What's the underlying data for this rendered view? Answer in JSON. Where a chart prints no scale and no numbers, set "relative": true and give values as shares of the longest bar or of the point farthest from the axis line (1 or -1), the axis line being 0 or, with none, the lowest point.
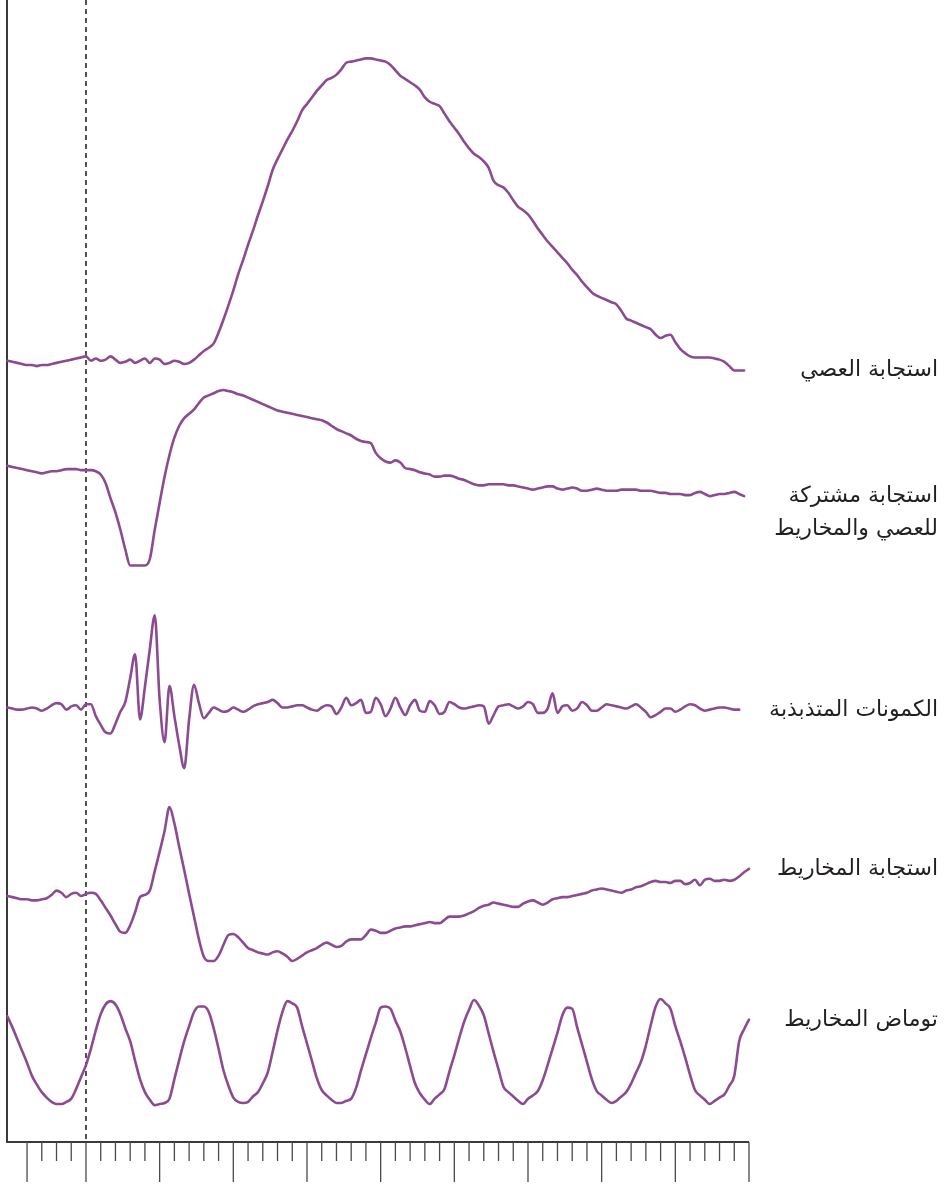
{
  "chart_data": {
    "type": "line",
    "relative": true,
    "categories": [
      null,
      null,
      null,
      null,
      null,
      null,
      null,
      null,
      null,
      null,
      null,
      null,
      null,
      null,
      null,
      null,
      null,
      null,
      null,
      null,
      null,
      null,
      null,
      null,
      null,
      null,
      null,
      null,
      null,
      null,
      null,
      null,
      null,
      null,
      null,
      null,
      null,
      null,
      null,
      null,
      null,
      null,
      null,
      null,
      null,
      null,
      null,
      null,
      null,
      null,
      null,
      null,
      null,
      null,
      null,
      null,
      null,
      null,
      null,
      null,
      null,
      null,
      null,
      null,
      null,
      null,
      null,
      null,
      null,
      null,
      null,
      null,
      null,
      null,
      null,
      null,
      null,
      null,
      null,
      null,
      null,
      null,
      null,
      null,
      null,
      null,
      null,
      null,
      null,
      null,
      null,
      null,
      null,
      null,
      null,
      null,
      null,
      null,
      null,
      null,
      null,
      null,
      null,
      null,
      null,
      null,
      null,
      null,
      null,
      null,
      null,
      null,
      null,
      null,
      null,
      null,
      null,
      null,
      null,
      null,
      null,
      null,
      null,
      null,
      null,
      null,
      null,
      null,
      null,
      null,
      null,
      null,
      null,
      null,
      null,
      null,
      null,
      null,
      null,
      null,
      null,
      null,
      null,
      null,
      null,
      null,
      null,
      null,
      null,
      null,
      null,
      null
    ],
    "series": [
      {
        "name": "استجابة العصي",
        "color": "#8c4a92",
        "values": [
          0.721,
          0.72,
          0.719,
          0.718,
          0.717,
          0.717,
          0.716,
          0.717,
          0.717,
          0.718,
          0.719,
          0.72,
          0.721,
          0.722,
          0.723,
          0.724,
          0.725,
          0.721,
          0.723,
          0.721,
          0.722,
          0.725,
          0.722,
          0.719,
          0.72,
          0.722,
          0.719,
          0.721,
          0.723,
          0.719,
          0.723,
          0.722,
          0.718,
          0.719,
          0.721,
          0.72,
          0.718,
          0.719,
          0.722,
          0.726,
          0.73,
          0.733,
          0.737,
          0.747,
          0.759,
          0.772,
          0.786,
          0.801,
          0.814,
          0.828,
          0.841,
          0.855,
          0.868,
          0.882,
          0.897,
          0.907,
          0.916,
          0.925,
          0.933,
          0.942,
          0.952,
          0.958,
          0.964,
          0.97,
          0.975,
          0.98,
          0.982,
          0.985,
          0.99,
          0.996,
          0.997,
          0.998,
          0.999,
          1.0,
          1.0,
          0.999,
          0.998,
          0.997,
          0.994,
          0.989,
          0.984,
          0.981,
          0.978,
          0.975,
          0.971,
          0.964,
          0.96,
          0.958,
          0.956,
          0.949,
          0.942,
          0.936,
          0.93,
          0.923,
          0.917,
          0.912,
          0.909,
          0.905,
          0.899,
          0.887,
          0.883,
          0.881,
          0.876,
          0.869,
          0.863,
          0.86,
          0.856,
          0.85,
          0.843,
          0.837,
          0.831,
          0.826,
          0.821,
          0.816,
          0.811,
          0.805,
          0.8,
          0.794,
          0.789,
          0.784,
          0.781,
          0.779,
          0.777,
          0.775,
          0.773,
          0.767,
          0.76,
          0.758,
          0.756,
          0.754,
          0.752,
          0.75,
          0.745,
          0.742,
          0.744,
          0.745,
          0.738,
          0.732,
          0.728,
          0.725,
          0.724,
          0.724,
          0.724,
          0.724,
          0.723,
          0.722,
          0.72,
          0.716,
          0.712,
          0.712,
          0.712,
          null
        ]
      },
      {
        "name": "استجابة مشتركة للعصي والمخاريط",
        "color": "#8c4a92",
        "values": [
          0.624,
          0.623,
          0.622,
          0.621,
          0.62,
          0.619,
          0.618,
          0.617,
          0.618,
          0.619,
          0.619,
          0.62,
          0.621,
          0.621,
          0.621,
          0.62,
          0.62,
          0.62,
          0.619,
          0.616,
          0.608,
          0.594,
          0.581,
          0.565,
          0.547,
          0.532,
          0.532,
          0.532,
          0.532,
          0.538,
          0.565,
          0.59,
          0.614,
          0.634,
          0.65,
          0.661,
          0.668,
          0.672,
          0.676,
          0.682,
          0.687,
          0.689,
          0.691,
          0.693,
          0.694,
          0.693,
          0.692,
          0.69,
          0.689,
          0.687,
          0.685,
          0.683,
          0.681,
          0.679,
          0.677,
          0.675,
          0.674,
          0.673,
          0.672,
          0.671,
          0.67,
          0.669,
          0.668,
          0.667,
          0.666,
          0.664,
          0.661,
          0.658,
          0.656,
          0.654,
          0.652,
          0.649,
          0.647,
          0.646,
          0.645,
          0.636,
          0.631,
          0.628,
          0.627,
          0.629,
          0.627,
          0.622,
          0.621,
          0.62,
          0.618,
          0.617,
          0.616,
          0.614,
          0.614,
          0.615,
          0.615,
          0.614,
          0.612,
          0.611,
          0.609,
          0.607,
          0.606,
          0.606,
          0.607,
          0.607,
          0.607,
          0.607,
          0.606,
          0.606,
          0.605,
          0.604,
          0.603,
          0.602,
          0.603,
          0.604,
          0.605,
          0.605,
          0.603,
          0.602,
          0.603,
          0.604,
          0.603,
          0.601,
          0.601,
          0.602,
          0.603,
          0.602,
          0.601,
          0.601,
          0.601,
          0.602,
          0.602,
          0.602,
          0.602,
          0.601,
          0.601,
          0.601,
          0.6,
          0.599,
          0.599,
          0.598,
          0.598,
          0.598,
          0.597,
          0.597,
          0.599,
          0.6,
          0.598,
          0.596,
          0.597,
          0.598,
          0.598,
          0.599,
          0.6,
          0.598,
          0.596,
          null
        ]
      },
      {
        "name": "الكمونات المتذبذبة",
        "color": "#8c4a92",
        "values": [
          0.401,
          0.4,
          0.399,
          0.399,
          0.4,
          0.401,
          0.4,
          0.398,
          0.4,
          0.403,
          0.405,
          0.404,
          0.399,
          0.402,
          0.403,
          0.399,
          0.404,
          0.404,
          0.393,
          0.385,
          0.378,
          0.377,
          0.386,
          0.397,
          0.406,
          0.428,
          0.45,
          0.39,
          0.42,
          0.455,
          0.486,
          0.408,
          0.369,
          0.421,
          0.393,
          0.366,
          0.345,
          0.39,
          0.422,
          0.405,
          0.391,
          0.396,
          0.401,
          0.399,
          0.397,
          0.398,
          0.401,
          0.399,
          0.397,
          0.399,
          0.402,
          0.404,
          0.405,
          0.406,
          0.408,
          0.405,
          0.401,
          0.401,
          0.402,
          0.403,
          0.403,
          0.401,
          0.399,
          0.398,
          0.401,
          0.403,
          0.402,
          0.395,
          0.401,
          0.41,
          0.403,
          0.405,
          0.408,
          0.396,
          0.397,
          0.41,
          0.404,
          0.393,
          0.4,
          0.41,
          0.401,
          0.394,
          0.403,
          0.408,
          0.398,
          0.397,
          0.407,
          0.403,
          0.395,
          0.397,
          0.406,
          0.404,
          0.401,
          0.4,
          0.401,
          0.402,
          0.403,
          0.402,
          0.386,
          0.394,
          0.402,
          0.403,
          0.404,
          0.402,
          0.4,
          0.402,
          0.406,
          0.404,
          0.396,
          0.396,
          0.4,
          0.414,
          0.396,
          0.402,
          0.403,
          0.398,
          0.4,
          0.406,
          0.403,
          0.398,
          0.398,
          0.401,
          0.404,
          0.403,
          0.402,
          0.401,
          0.4,
          0.402,
          0.404,
          0.401,
          0.397,
          0.392,
          0.394,
          0.397,
          0.4,
          0.4,
          0.397,
          0.399,
          0.402,
          0.404,
          0.403,
          0.4,
          0.398,
          0.399,
          0.4,
          0.401,
          0.401,
          0.4,
          0.399,
          0.399,
          null,
          null
        ]
      },
      {
        "name": "استجابة المخاريط",
        "color": "#8c4a92",
        "values": [
          0.227,
          0.226,
          0.225,
          0.224,
          0.224,
          0.223,
          0.223,
          0.224,
          0.225,
          0.228,
          0.232,
          0.23,
          0.226,
          0.229,
          0.23,
          0.227,
          0.229,
          0.23,
          0.229,
          0.223,
          0.216,
          0.209,
          0.201,
          0.194,
          0.193,
          0.2,
          0.212,
          0.226,
          0.228,
          0.232,
          0.25,
          0.268,
          0.287,
          0.309,
          0.294,
          0.272,
          0.251,
          0.229,
          0.208,
          0.187,
          0.171,
          0.167,
          0.167,
          0.172,
          0.182,
          0.191,
          0.192,
          0.189,
          0.184,
          0.179,
          0.177,
          0.175,
          0.174,
          0.173,
          0.175,
          0.176,
          0.174,
          0.171,
          0.167,
          0.169,
          0.172,
          0.175,
          0.177,
          0.179,
          0.182,
          0.184,
          0.182,
          0.18,
          0.181,
          0.185,
          0.187,
          0.187,
          0.187,
          0.191,
          0.196,
          0.195,
          0.193,
          0.193,
          0.195,
          0.197,
          0.198,
          0.199,
          0.199,
          0.2,
          0.201,
          0.202,
          0.203,
          0.202,
          0.202,
          0.205,
          0.208,
          0.208,
          0.208,
          0.209,
          0.211,
          0.213,
          0.216,
          0.218,
          0.219,
          0.221,
          0.22,
          0.219,
          0.218,
          0.217,
          0.217,
          0.22,
          0.222,
          0.223,
          0.221,
          0.219,
          0.221,
          0.224,
          0.225,
          0.226,
          0.226,
          0.227,
          0.228,
          0.229,
          0.23,
          0.232,
          0.233,
          0.234,
          0.233,
          0.232,
          0.231,
          0.23,
          0.232,
          0.233,
          0.235,
          0.236,
          0.238,
          0.24,
          0.241,
          0.24,
          0.24,
          0.239,
          0.241,
          0.241,
          0.238,
          0.239,
          0.242,
          0.237,
          0.242,
          0.243,
          0.241,
          0.241,
          0.242,
          0.241,
          0.242,
          0.245,
          0.249,
          0.252
        ]
      },
      {
        "name": "توماض المخاريط",
        "color": "#8c4a92",
        "values": [
          0.116,
          0.106,
          0.095,
          0.084,
          0.073,
          0.061,
          0.053,
          0.046,
          0.041,
          0.037,
          0.035,
          0.035,
          0.037,
          0.04,
          0.049,
          0.06,
          0.071,
          0.086,
          0.103,
          0.118,
          0.127,
          0.13,
          0.127,
          0.118,
          0.105,
          0.093,
          0.075,
          0.058,
          0.046,
          0.039,
          0.034,
          0.035,
          0.036,
          0.04,
          0.058,
          0.076,
          0.093,
          0.107,
          0.12,
          0.125,
          0.125,
          0.12,
          0.105,
          0.086,
          0.066,
          0.052,
          0.041,
          0.037,
          0.036,
          0.037,
          0.042,
          0.046,
          0.054,
          0.064,
          0.083,
          0.103,
          0.12,
          0.13,
          0.128,
          0.124,
          0.107,
          0.091,
          0.075,
          0.059,
          0.048,
          0.043,
          0.039,
          0.036,
          0.036,
          0.038,
          0.04,
          0.05,
          0.066,
          0.081,
          0.096,
          0.11,
          0.124,
          0.125,
          0.123,
          0.112,
          0.102,
          0.087,
          0.07,
          0.054,
          0.045,
          0.039,
          0.035,
          0.04,
          0.044,
          0.049,
          0.065,
          0.08,
          0.096,
          0.111,
          0.122,
          0.131,
          0.126,
          0.117,
          0.1,
          0.083,
          0.067,
          0.051,
          0.046,
          0.042,
          0.038,
          0.035,
          0.04,
          0.043,
          0.047,
          0.057,
          0.071,
          0.086,
          0.101,
          0.117,
          0.124,
          0.123,
          0.106,
          0.09,
          0.074,
          0.058,
          0.047,
          0.043,
          0.039,
          0.036,
          0.038,
          0.042,
          0.046,
          0.054,
          0.064,
          0.074,
          0.089,
          0.108,
          0.125,
          0.132,
          0.128,
          0.123,
          0.107,
          0.093,
          0.078,
          0.062,
          0.048,
          0.043,
          0.039,
          0.035,
          0.038,
          0.041,
          0.044,
          0.052,
          0.061,
          0.093,
          0.104,
          0.113
        ]
      }
    ]
  }
}
